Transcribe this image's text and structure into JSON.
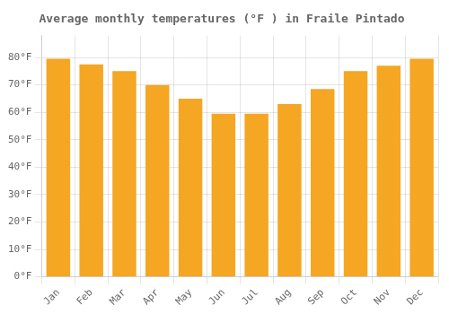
{
  "chart_data": {
    "type": "bar",
    "title": "Average monthly temperatures (°F ) in Fraile Pintado",
    "categories": [
      "Jan",
      "Feb",
      "Mar",
      "Apr",
      "May",
      "Jun",
      "Jul",
      "Aug",
      "Sep",
      "Oct",
      "Nov",
      "Dec"
    ],
    "values": [
      79.5,
      77.5,
      75.0,
      70.0,
      65.0,
      59.5,
      59.5,
      63.0,
      68.5,
      75.0,
      77.0,
      79.5
    ],
    "color": "#F5A623",
    "ylim": [
      0,
      88
    ],
    "yticks": [
      {
        "value": 0,
        "label": "0°F"
      },
      {
        "value": 10,
        "label": "10°F"
      },
      {
        "value": 20,
        "label": "20°F"
      },
      {
        "value": 30,
        "label": "30°F"
      },
      {
        "value": 40,
        "label": "40°F"
      },
      {
        "value": 50,
        "label": "50°F"
      },
      {
        "value": 60,
        "label": "60°F"
      },
      {
        "value": 70,
        "label": "70°F"
      },
      {
        "value": 80,
        "label": "80°F"
      }
    ],
    "grid": true
  }
}
